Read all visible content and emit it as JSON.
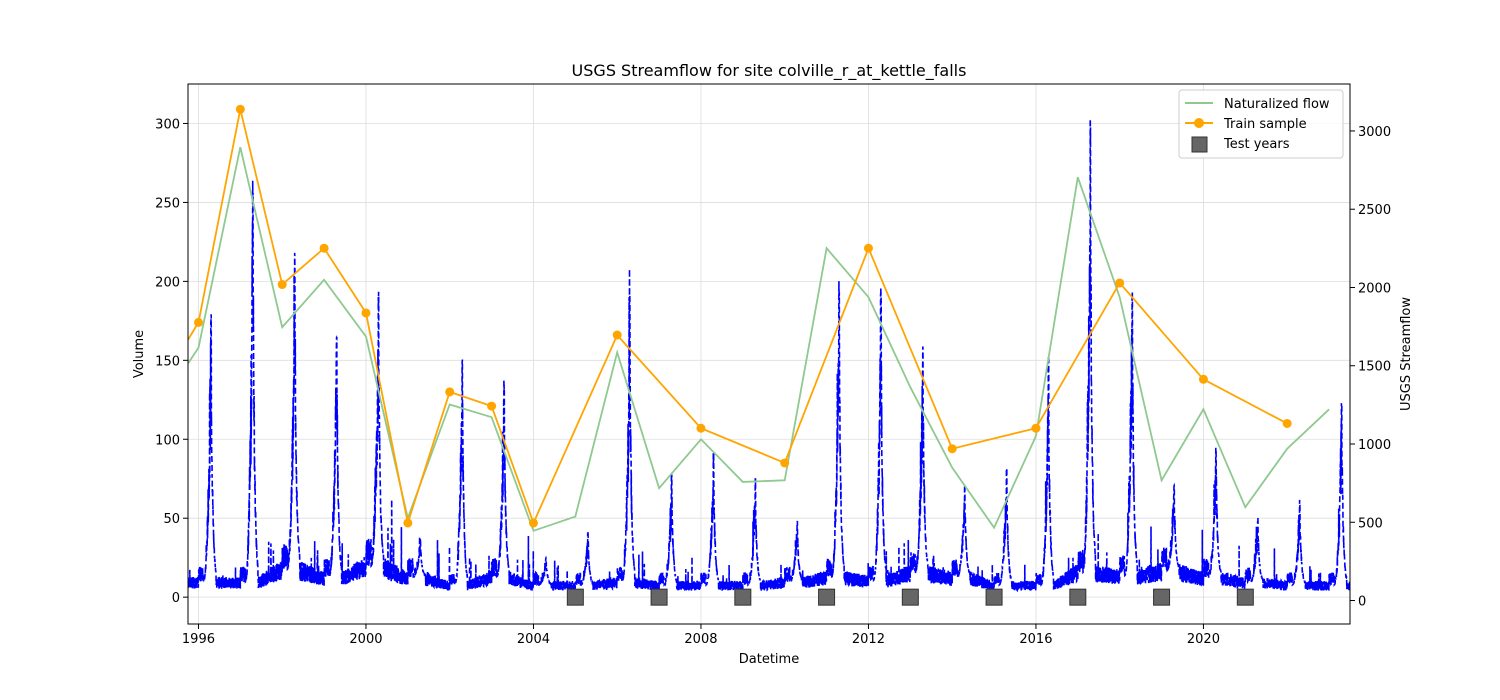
{
  "chart_data": {
    "type": "line",
    "title": "USGS Streamflow for site colville_r_at_kettle_falls",
    "xlabel": "Datetime",
    "ylabel": "Volume",
    "y2label": "USGS Streamflow",
    "xlim": [
      1995.75,
      2023.5
    ],
    "ylim": [
      -17,
      325
    ],
    "y2lim": [
      -150,
      3300
    ],
    "grid": true,
    "legend_position": "top-right",
    "x_ticks": [
      1996,
      2000,
      2004,
      2008,
      2012,
      2016,
      2020
    ],
    "x_tick_labels": [
      "1996",
      "2000",
      "2004",
      "2008",
      "2012",
      "2016",
      "2020"
    ],
    "y_ticks": [
      0,
      50,
      100,
      150,
      200,
      250,
      300
    ],
    "y_tick_labels": [
      "0",
      "50",
      "100",
      "150",
      "200",
      "250",
      "300"
    ],
    "y2_ticks": [
      0,
      500,
      1000,
      1500,
      2000,
      2500,
      3000
    ],
    "y2_tick_labels": [
      "0",
      "500",
      "1000",
      "1500",
      "2000",
      "2500",
      "3000"
    ],
    "legend": [
      {
        "label": "Naturalized flow",
        "color": "#8fc98f",
        "marker": "line"
      },
      {
        "label": "Train sample",
        "color": "#ffa500",
        "marker": "line-dot"
      },
      {
        "label": "Test years",
        "color": "#666666",
        "marker": "square"
      }
    ],
    "series": [
      {
        "name": "Naturalized flow",
        "color": "#8fc98f",
        "axis": "left",
        "x": [
          1995.75,
          1996,
          1997,
          1998,
          1999,
          2000,
          2001,
          2002,
          2003,
          2004,
          2005,
          2006,
          2007,
          2008,
          2009,
          2010,
          2011,
          2012,
          2013,
          2014,
          2015,
          2016,
          2017,
          2018,
          2019,
          2020,
          2021,
          2022,
          2023
        ],
        "values": [
          148,
          158,
          285,
          171,
          201,
          165,
          50,
          122,
          114,
          42,
          51,
          155,
          69,
          100,
          73,
          74,
          221,
          190,
          133,
          82,
          44,
          102,
          266,
          190,
          74,
          119,
          57,
          94,
          119
        ]
      },
      {
        "name": "Train sample",
        "color": "#ffa500",
        "axis": "left",
        "x": [
          1995.75,
          1996,
          1997,
          1998,
          1999,
          2000,
          2001,
          2002,
          2003,
          2004,
          2006,
          2008,
          2010,
          2012,
          2014,
          2016,
          2018,
          2020,
          2022
        ],
        "values": [
          163,
          174,
          309,
          198,
          221,
          180,
          47,
          130,
          121,
          47,
          166,
          107,
          85,
          221,
          94,
          107,
          199,
          138,
          110
        ],
        "markers": [
          false,
          true,
          true,
          true,
          true,
          true,
          true,
          true,
          true,
          true,
          true,
          true,
          true,
          true,
          true,
          true,
          true,
          true,
          true
        ]
      },
      {
        "name": "USGS Streamflow",
        "color": "#0000ff",
        "axis": "right",
        "style": "dashed",
        "years": [
          1996,
          1997,
          1998,
          1999,
          2000,
          2001,
          2002,
          2003,
          2004,
          2005,
          2006,
          2007,
          2008,
          2009,
          2010,
          2011,
          2012,
          2013,
          2014,
          2015,
          2016,
          2017,
          2018,
          2019,
          2020,
          2021,
          2022,
          2023
        ],
        "annual_peaks": [
          1900,
          2800,
          2300,
          1800,
          2000,
          400,
          1600,
          1450,
          280,
          450,
          1970,
          820,
          950,
          800,
          520,
          2100,
          2000,
          1650,
          750,
          900,
          1570,
          3120,
          2060,
          750,
          1000,
          540,
          650,
          1300
        ],
        "base_flow": [
          120,
          120,
          200,
          150,
          220,
          150,
          100,
          150,
          100,
          100,
          120,
          100,
          100,
          100,
          120,
          150,
          130,
          180,
          150,
          100,
          100,
          180,
          160,
          190,
          150,
          120,
          100,
          100
        ]
      }
    ],
    "test_years": [
      2005,
      2007,
      2009,
      2011,
      2013,
      2015,
      2017,
      2019,
      2021
    ],
    "test_marker_value": 0,
    "test_marker_color": "#666666"
  }
}
